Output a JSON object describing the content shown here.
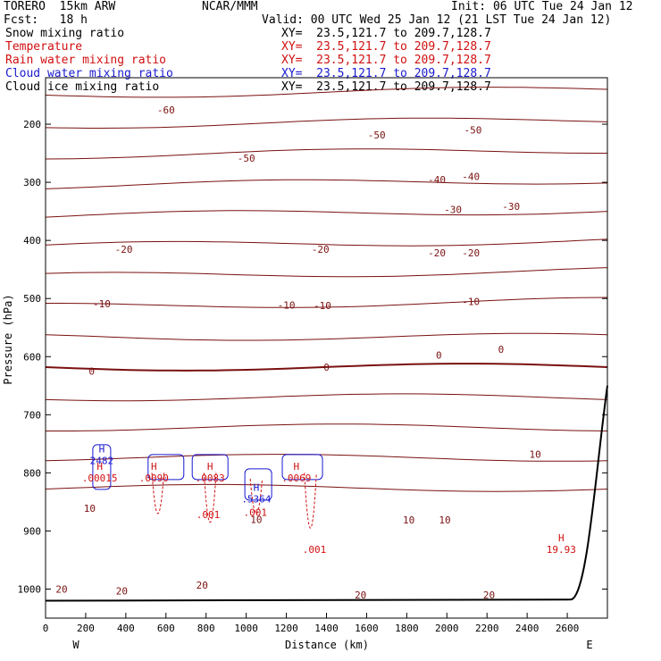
{
  "header": {
    "model": "TORERO  15km ARW",
    "org": "NCAR/MMM",
    "init": "Init: 06 UTC Tue 24 Jan 12",
    "fcst": "Fcst:   18 h",
    "valid": "Valid: 00 UTC Wed 25 Jan 12 (21 LST Tue 24 Jan 12)"
  },
  "fields": [
    {
      "label": "Snow mixing ratio",
      "xy": "XY=  23.5,121.7 to 209.7,128.7",
      "color": "#000000"
    },
    {
      "label": "Temperature",
      "xy": "XY=  23.5,121.7 to 209.7,128.7",
      "color": "#d01010"
    },
    {
      "label": "Rain water mixing ratio",
      "xy": "XY=  23.5,121.7 to 209.7,128.7",
      "color": "#d01010"
    },
    {
      "label": "Cloud water mixing ratio",
      "xy": "XY=  23.5,121.7 to 209.7,128.7",
      "color": "#1a1ad0"
    },
    {
      "label": "Cloud ice mixing ratio",
      "xy": "XY=  23.5,121.7 to 209.7,128.7",
      "color": "#000000"
    }
  ],
  "chart_data": {
    "type": "contour",
    "xlabel": "Distance (km)",
    "ylabel": "Pressure (hPa)",
    "xlim": [
      0,
      2800
    ],
    "ylim": [
      1050,
      120
    ],
    "x_ticks": [
      0,
      200,
      400,
      600,
      800,
      1000,
      1200,
      1400,
      1600,
      1800,
      2000,
      2200,
      2400,
      2600
    ],
    "x_tick_labels": [
      "0",
      "200",
      "400",
      "600",
      "800",
      "1000",
      "1200",
      "1400",
      "1600",
      "1800",
      "2000",
      "2200",
      "2400",
      "2600"
    ],
    "y_ticks": [
      200,
      300,
      400,
      500,
      600,
      700,
      800,
      900,
      1000
    ],
    "y_tick_labels": [
      "200",
      "300",
      "400",
      "500",
      "600",
      "700",
      "800",
      "900",
      "1000"
    ],
    "x_end_labels": {
      "left": "W",
      "right": "E"
    },
    "temperature_contour_labels": [
      {
        "x": 600,
        "p": 175,
        "text": "-60"
      },
      {
        "x": 1000,
        "p": 258,
        "text": "-50"
      },
      {
        "x": 1650,
        "p": 218,
        "text": "-50"
      },
      {
        "x": 2130,
        "p": 210,
        "text": "-50"
      },
      {
        "x": 1950,
        "p": 295,
        "text": "-40"
      },
      {
        "x": 2120,
        "p": 290,
        "text": "-40"
      },
      {
        "x": 2030,
        "p": 347,
        "text": "-30"
      },
      {
        "x": 2320,
        "p": 341,
        "text": "-30"
      },
      {
        "x": 390,
        "p": 415,
        "text": "-20"
      },
      {
        "x": 1370,
        "p": 415,
        "text": "-20"
      },
      {
        "x": 1950,
        "p": 421,
        "text": "-20"
      },
      {
        "x": 2120,
        "p": 421,
        "text": "-20"
      },
      {
        "x": 280,
        "p": 509,
        "text": "-10"
      },
      {
        "x": 1200,
        "p": 511,
        "text": "-10"
      },
      {
        "x": 1380,
        "p": 512,
        "text": "-10"
      },
      {
        "x": 2120,
        "p": 505,
        "text": "-10"
      },
      {
        "x": 230,
        "p": 625,
        "text": "0"
      },
      {
        "x": 1400,
        "p": 618,
        "text": "0"
      },
      {
        "x": 1960,
        "p": 597,
        "text": "0"
      },
      {
        "x": 2270,
        "p": 587,
        "text": "0"
      },
      {
        "x": 2440,
        "p": 768,
        "text": "10"
      },
      {
        "x": 220,
        "p": 861,
        "text": "10"
      },
      {
        "x": 1050,
        "p": 880,
        "text": "10"
      },
      {
        "x": 1810,
        "p": 881,
        "text": "10"
      },
      {
        "x": 1990,
        "p": 881,
        "text": "10"
      },
      {
        "x": 80,
        "p": 1000,
        "text": "20"
      },
      {
        "x": 380,
        "p": 1003,
        "text": "20"
      },
      {
        "x": 780,
        "p": 993,
        "text": "20"
      },
      {
        "x": 1570,
        "p": 1010,
        "text": "20"
      },
      {
        "x": 2210,
        "p": 1010,
        "text": "20"
      }
    ],
    "extrema_labels": [
      {
        "x": 280,
        "p": 777,
        "kind": "H",
        "value": "2482",
        "color": "#1a1ad0"
      },
      {
        "x": 270,
        "p": 807,
        "kind": "H",
        "value": ".00015",
        "color": "#d01010"
      },
      {
        "x": 540,
        "p": 807,
        "kind": "H",
        "value": ".0090",
        "color": "#d01010"
      },
      {
        "x": 820,
        "p": 807,
        "kind": "H",
        "value": ".0083",
        "color": "#d01010"
      },
      {
        "x": 810,
        "p": 870,
        "kind": "",
        "value": ".001",
        "color": "#d01010"
      },
      {
        "x": 1050,
        "p": 843,
        "kind": "H",
        "value": ".5364",
        "color": "#1a1ad0"
      },
      {
        "x": 1045,
        "p": 866,
        "kind": "",
        "value": ".001",
        "color": "#d01010"
      },
      {
        "x": 1250,
        "p": 807,
        "kind": "H",
        "value": ".0069",
        "color": "#d01010"
      },
      {
        "x": 1340,
        "p": 930,
        "kind": "",
        "value": ".001",
        "color": "#d01010"
      },
      {
        "x": 2570,
        "p": 930,
        "kind": "H",
        "value": "19.93",
        "color": "#d01010"
      }
    ],
    "colors": {
      "temperature": "#7a1010",
      "rain": "#d01010",
      "cloud_water": "#1a1ad0",
      "terrain": "#000000",
      "axes": "#000000"
    }
  }
}
